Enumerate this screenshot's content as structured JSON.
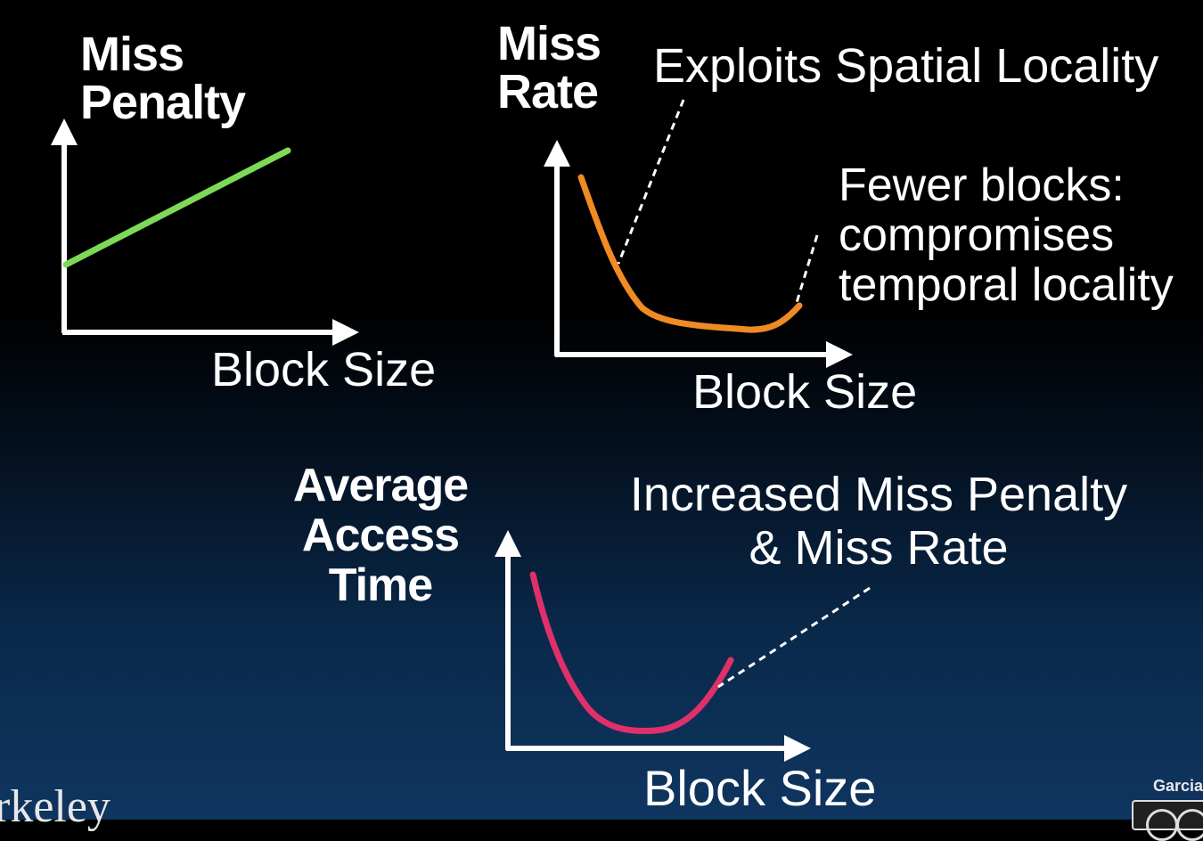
{
  "miss_penalty_chart": {
    "ylabel_line1": "Miss",
    "ylabel_line2": "Penalty",
    "xlabel": "Block Size",
    "line_color": "#7ed957"
  },
  "miss_rate_chart": {
    "ylabel_line1": "Miss",
    "ylabel_line2": "Rate",
    "xlabel": "Block Size",
    "line_color": "#f08a24",
    "annotations": {
      "spatial": "Exploits Spatial Locality",
      "fewer_line1": "Fewer blocks:",
      "fewer_line2": "compromises",
      "fewer_line3": "temporal locality"
    }
  },
  "avg_access_chart": {
    "ylabel_line1": "Average",
    "ylabel_line2": "Access",
    "ylabel_line3": "Time",
    "xlabel": "Block Size",
    "line_color": "#e0306a",
    "annotations": {
      "increased_line1": "Increased Miss Penalty",
      "increased_line2": "& Miss Rate"
    }
  },
  "footer": {
    "logo_text": "rkeley",
    "author": "Garcia",
    "license_icon": "creative-commons-icon"
  }
}
